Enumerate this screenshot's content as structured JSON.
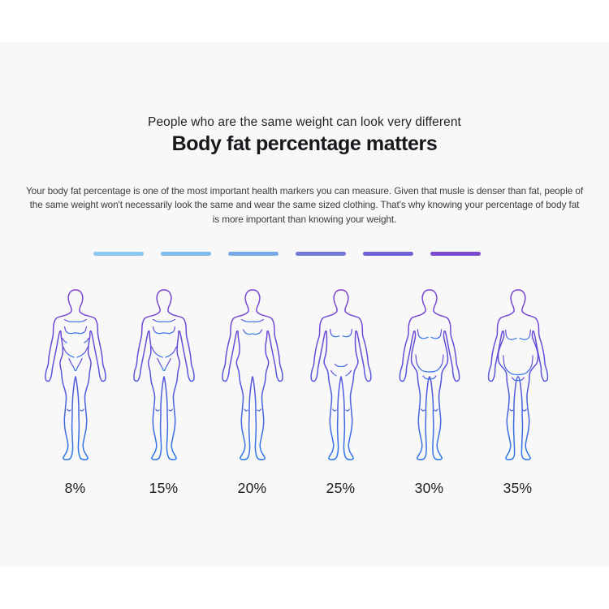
{
  "page": {
    "background": "#ffffff",
    "panel_background": "#f8f8f8"
  },
  "header": {
    "subtitle": "People who are the same weight can look very different",
    "title": "Body fat percentage matters",
    "description": "Your body fat percentage is one of the most important health markers you can measure. Given that musle is denser than fat, people of the same weight won't necessarily look the same and wear the same sized clothing. That's why knowing your percentage of body fat is more important than knowing your weight."
  },
  "divider_dashes": {
    "colors": [
      "#8AC8EF",
      "#7FBCEC",
      "#79A9E6",
      "#7478DB",
      "#6F62D5",
      "#7A4BCD"
    ]
  },
  "figures": {
    "stroke_gradient": {
      "top": "#7E42D1",
      "mid": "#5F50D9",
      "bottom": "#2E78E6"
    },
    "items": [
      {
        "label": "8%",
        "build": "athletic"
      },
      {
        "label": "15%",
        "build": "fit"
      },
      {
        "label": "20%",
        "build": "average"
      },
      {
        "label": "25%",
        "build": "soft"
      },
      {
        "label": "30%",
        "build": "round"
      },
      {
        "label": "35%",
        "build": "fuller"
      }
    ]
  }
}
